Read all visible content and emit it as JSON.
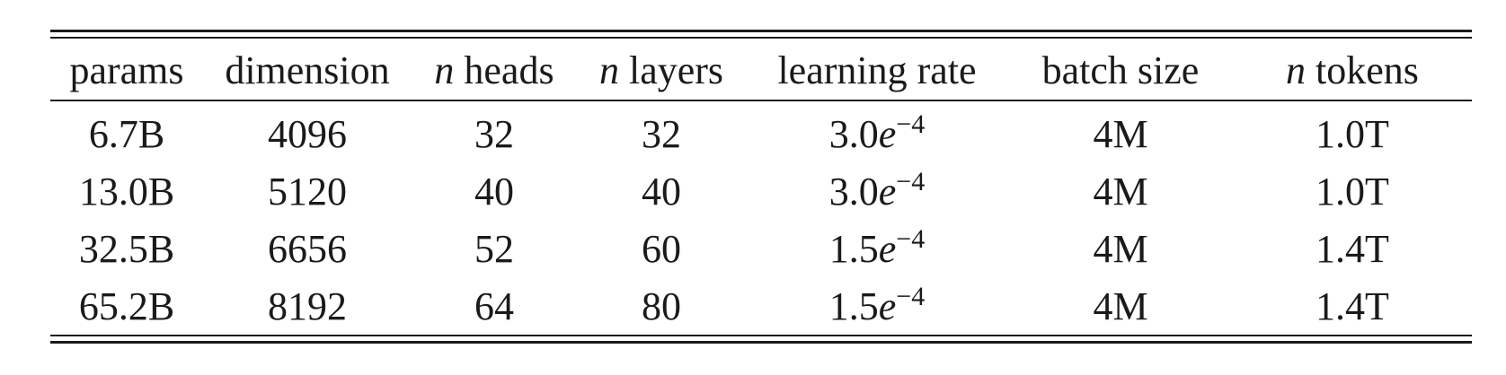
{
  "table": {
    "headers": [
      {
        "prefix": "",
        "label": "params"
      },
      {
        "prefix": "",
        "label": "dimension"
      },
      {
        "prefix": "n",
        "label": " heads"
      },
      {
        "prefix": "n",
        "label": " layers"
      },
      {
        "prefix": "",
        "label": "learning rate"
      },
      {
        "prefix": "",
        "label": "batch size"
      },
      {
        "prefix": "n",
        "label": " tokens"
      }
    ],
    "rows": [
      {
        "params": "6.7B",
        "dimension": "4096",
        "heads": "32",
        "layers": "32",
        "lr_mantissa": "3.0",
        "lr_base": "e",
        "lr_exp": "−4",
        "batch": "4M",
        "tokens": "1.0T"
      },
      {
        "params": "13.0B",
        "dimension": "5120",
        "heads": "40",
        "layers": "40",
        "lr_mantissa": "3.0",
        "lr_base": "e",
        "lr_exp": "−4",
        "batch": "4M",
        "tokens": "1.0T"
      },
      {
        "params": "32.5B",
        "dimension": "6656",
        "heads": "52",
        "layers": "60",
        "lr_mantissa": "1.5",
        "lr_base": "e",
        "lr_exp": "−4",
        "batch": "4M",
        "tokens": "1.4T"
      },
      {
        "params": "65.2B",
        "dimension": "8192",
        "heads": "64",
        "layers": "80",
        "lr_mantissa": "1.5",
        "lr_base": "e",
        "lr_exp": "−4",
        "batch": "4M",
        "tokens": "1.4T"
      }
    ]
  }
}
